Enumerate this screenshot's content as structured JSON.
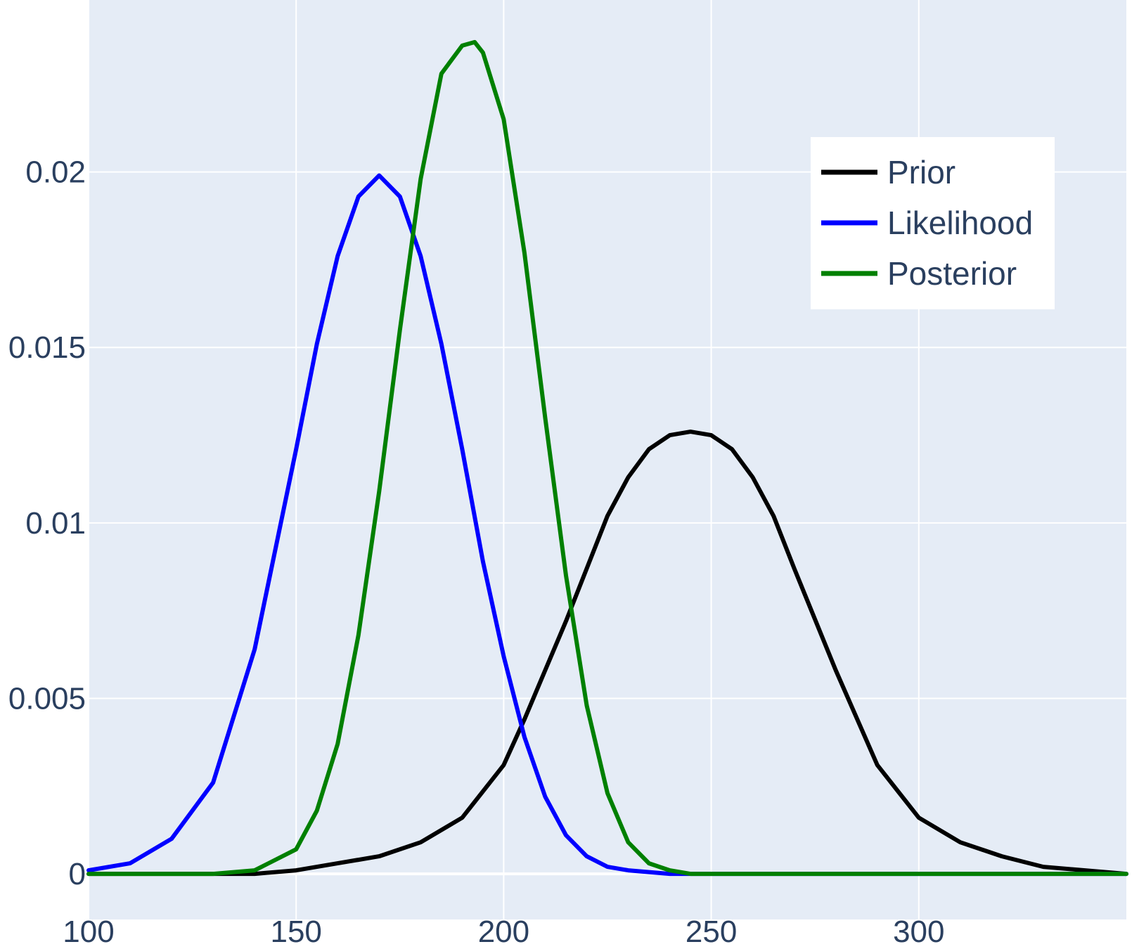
{
  "chart_data": {
    "type": "line",
    "title": "",
    "xlabel": "",
    "ylabel": "",
    "xlim": [
      100,
      350
    ],
    "ylim": [
      -0.0013,
      0.0249
    ],
    "xticks": [
      100,
      150,
      200,
      250,
      300
    ],
    "xtick_labels": [
      "100",
      "150",
      "200",
      "250",
      "300"
    ],
    "yticks": [
      0,
      0.005,
      0.01,
      0.015,
      0.02
    ],
    "ytick_labels": [
      "0",
      "0.005",
      "0.01",
      "0.015",
      "0.02"
    ],
    "grid": true,
    "legend_position": "top-right",
    "colors": {
      "plot_bg": "#e5ecf6",
      "grid": "#ffffff",
      "text": "#2a3f5f"
    },
    "series": [
      {
        "name": "Prior",
        "color": "#000000",
        "x": [
          100,
          110,
          120,
          130,
          140,
          150,
          160,
          170,
          180,
          190,
          200,
          205,
          210,
          215,
          220,
          225,
          230,
          235,
          240,
          245,
          250,
          255,
          260,
          265,
          270,
          280,
          290,
          300,
          310,
          320,
          330,
          340,
          350
        ],
        "y": [
          0.0,
          0.0,
          0.0,
          0.0,
          0.0,
          0.0001,
          0.0003,
          0.0005,
          0.0009,
          0.0016,
          0.0031,
          0.0044,
          0.0058,
          0.0072,
          0.0087,
          0.0102,
          0.0113,
          0.0121,
          0.0125,
          0.0126,
          0.0125,
          0.0121,
          0.0113,
          0.0102,
          0.0087,
          0.0058,
          0.0031,
          0.0016,
          0.0009,
          0.0005,
          0.0002,
          0.0001,
          0.0
        ]
      },
      {
        "name": "Likelihood",
        "color": "#0000ff",
        "x": [
          100,
          110,
          120,
          130,
          140,
          150,
          155,
          160,
          165,
          170,
          175,
          180,
          185,
          190,
          195,
          200,
          205,
          210,
          215,
          220,
          225,
          230,
          240,
          250,
          260,
          280,
          300,
          350
        ],
        "y": [
          0.0001,
          0.0003,
          0.001,
          0.0026,
          0.0064,
          0.0121,
          0.0151,
          0.0176,
          0.0193,
          0.0199,
          0.0193,
          0.0176,
          0.0151,
          0.0121,
          0.0089,
          0.0062,
          0.0039,
          0.0022,
          0.0011,
          0.0005,
          0.0002,
          0.0001,
          0.0,
          0.0,
          0.0,
          0.0,
          0.0,
          0.0
        ]
      },
      {
        "name": "Posterior",
        "color": "#008000",
        "x": [
          100,
          130,
          140,
          150,
          155,
          160,
          165,
          170,
          175,
          180,
          185,
          190,
          193,
          195,
          200,
          205,
          210,
          215,
          220,
          225,
          230,
          235,
          240,
          245,
          250,
          260,
          270,
          350
        ],
        "y": [
          0.0,
          0.0,
          0.0001,
          0.0007,
          0.0018,
          0.0037,
          0.0068,
          0.0109,
          0.0155,
          0.0198,
          0.0228,
          0.0236,
          0.0237,
          0.0234,
          0.0215,
          0.0177,
          0.013,
          0.0085,
          0.0048,
          0.0023,
          0.0009,
          0.0003,
          0.0001,
          0.0,
          0.0,
          0.0,
          0.0,
          0.0
        ]
      }
    ]
  }
}
